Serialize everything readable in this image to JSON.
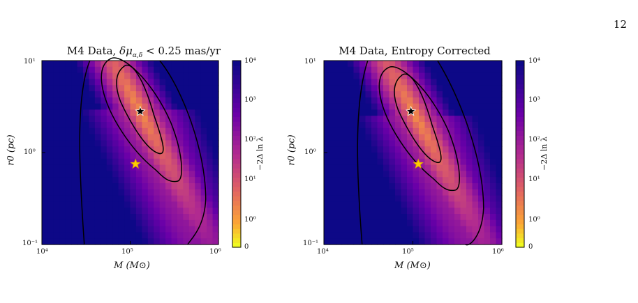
{
  "page": {
    "number": "12"
  },
  "chart_data": [
    {
      "type": "heatmap",
      "title_text": "M4 Data, ",
      "title_math": "δμ",
      "title_sub": "α,δ",
      "title_rest": " < 0.25 mas/yr",
      "xlabel": "M (M⊙)",
      "ylabel": "r0 (pc)",
      "xscale": "log",
      "yscale": "log",
      "xlim": [
        10000,
        1000000
      ],
      "ylim": [
        0.1,
        10
      ],
      "xticks": [
        "10⁴",
        "10⁵",
        "10⁶"
      ],
      "yticks": [
        "10⁻¹",
        "10⁰",
        "10¹"
      ],
      "colorbar": {
        "label": "−2Δ ln λ",
        "ticks": [
          "0",
          "10⁰",
          "10¹",
          "10²",
          "10³",
          "10⁴"
        ],
        "colors": [
          "#f0f921",
          "#fca636",
          "#e16462",
          "#b12a90",
          "#6a00a8",
          "#0d0887"
        ]
      },
      "markers": [
        {
          "label": "best fit",
          "x": 130000,
          "y": 2.8,
          "color": "#000000"
        },
        {
          "label": "reference",
          "x": 115000,
          "y": 0.75,
          "color": "#ffcc00"
        }
      ],
      "contours": 3,
      "minimum": {
        "x": 125000,
        "y": 3.0
      }
    },
    {
      "type": "heatmap",
      "title_text": "M4 Data, Entropy Corrected",
      "xlabel": "M (M⊙)",
      "ylabel": "r0 (pc)",
      "xscale": "log",
      "yscale": "log",
      "xlim": [
        10000,
        1000000
      ],
      "ylim": [
        0.1,
        10
      ],
      "xticks": [
        "10⁴",
        "10⁵",
        "10⁶"
      ],
      "yticks": [
        "10⁻¹",
        "10⁰",
        "10¹"
      ],
      "colorbar": {
        "label": "−2Δ ln λ",
        "ticks": [
          "0",
          "10⁰",
          "10¹",
          "10²",
          "10³",
          "10⁴"
        ],
        "colors": [
          "#f0f921",
          "#fca636",
          "#e16462",
          "#b12a90",
          "#6a00a8",
          "#0d0887"
        ]
      },
      "markers": [
        {
          "label": "best fit",
          "x": 95000,
          "y": 2.8,
          "color": "#000000"
        },
        {
          "label": "reference",
          "x": 115000,
          "y": 0.75,
          "color": "#ffcc00"
        }
      ],
      "contours": 3,
      "minimum": {
        "x": 110000,
        "y": 2.4
      }
    }
  ]
}
